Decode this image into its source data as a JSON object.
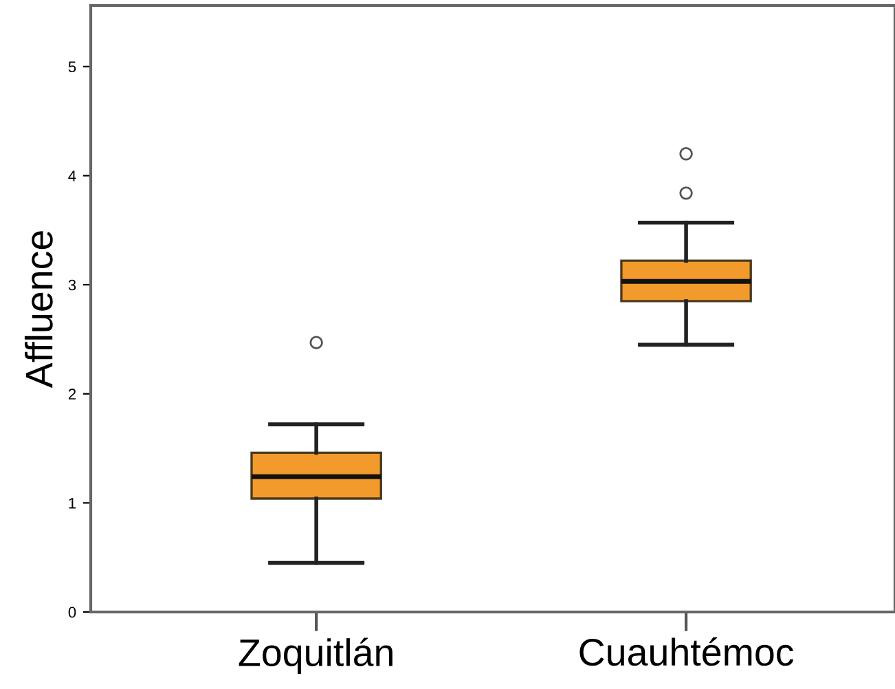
{
  "chart_data": {
    "type": "box",
    "ylabel": "Affluence",
    "categories": [
      "Zoquitlán",
      "Cuauhtémoc"
    ],
    "color": "#f39a2c",
    "boxes": [
      {
        "low": 0.45,
        "q1": 1.04,
        "median": 1.24,
        "q3": 1.46,
        "high": 1.72,
        "outliers": [
          2.47
        ]
      },
      {
        "low": 2.45,
        "q1": 2.85,
        "median": 3.03,
        "q3": 3.22,
        "high": 3.57,
        "outliers": [
          3.84,
          4.2
        ]
      }
    ],
    "ylim": [
      0,
      5.56
    ],
    "yticks": [
      0,
      1,
      2,
      3,
      4,
      5
    ],
    "grid": false
  }
}
